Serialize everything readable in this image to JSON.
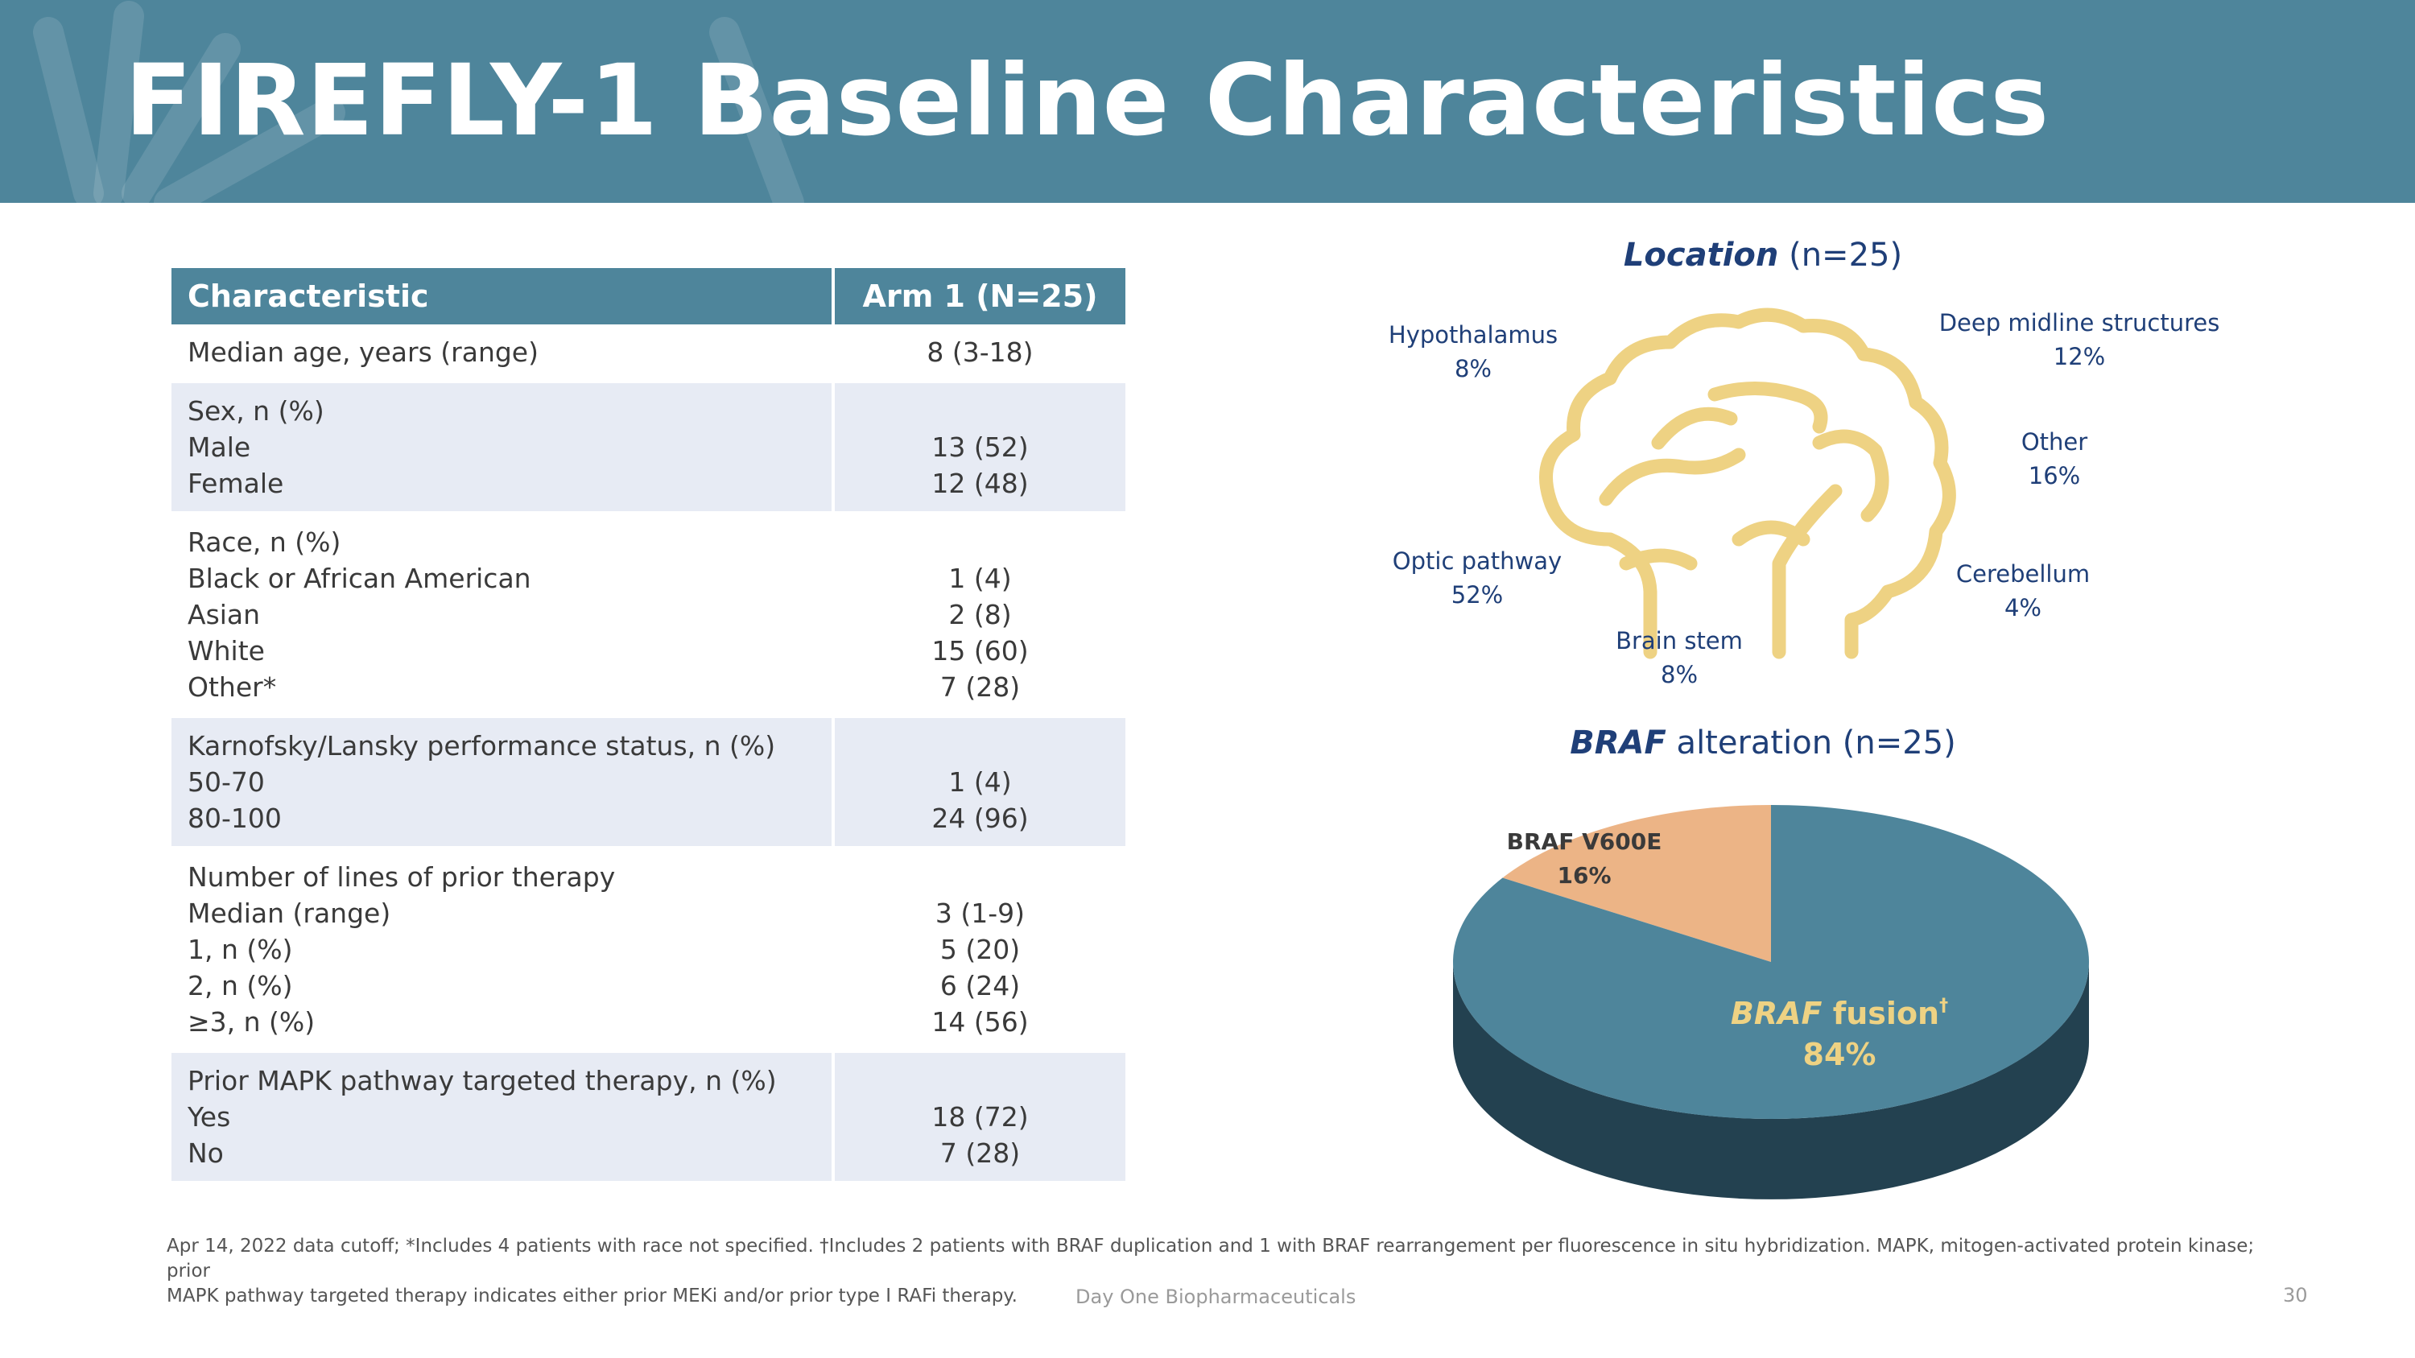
{
  "header": {
    "title": "FIREFLY-1 Baseline Characteristics"
  },
  "table": {
    "col1_header": "Characteristic",
    "col2_header": "Arm 1 (N=25)",
    "rows": [
      {
        "labels": [
          "Median age, years (range)"
        ],
        "values": [
          "8 (3-18)"
        ]
      },
      {
        "labels": [
          "Sex, n (%)",
          "Male",
          "Female"
        ],
        "values": [
          "",
          "13 (52)",
          "12 (48)"
        ]
      },
      {
        "labels": [
          "Race, n (%)",
          "Black or African American",
          "Asian",
          "White",
          "Other*"
        ],
        "values": [
          "",
          "1 (4)",
          "2 (8)",
          "15 (60)",
          "7 (28)"
        ]
      },
      {
        "labels": [
          "Karnofsky/Lansky performance status, n (%)",
          "50-70",
          "80-100"
        ],
        "values": [
          "",
          "1 (4)",
          "24 (96)"
        ]
      },
      {
        "labels": [
          "Number of lines of prior therapy",
          "Median (range)",
          "1, n (%)",
          "2, n (%)",
          "≥3, n (%)"
        ],
        "values": [
          "",
          "3 (1-9)",
          "5 (20)",
          "6 (24)",
          "14 (56)"
        ]
      },
      {
        "labels": [
          "Prior MAPK pathway targeted therapy, n (%)",
          "Yes",
          "No"
        ],
        "values": [
          "",
          "18 (72)",
          "7 (28)"
        ]
      }
    ]
  },
  "location": {
    "title_em": "Location",
    "title_rest": " (n=25)",
    "labels": [
      {
        "name": "Hypothalamus",
        "pct": "8%"
      },
      {
        "name": "Deep midline structures",
        "pct": "12%"
      },
      {
        "name": "Other",
        "pct": "16%"
      },
      {
        "name": "Optic pathway",
        "pct": "52%"
      },
      {
        "name": "Cerebellum",
        "pct": "4%"
      },
      {
        "name": "Brain stem",
        "pct": "8%"
      }
    ]
  },
  "chart_data": {
    "type": "pie",
    "title": "BRAF alteration (n=25)",
    "title_em": "BRAF",
    "title_rest": " alteration (n=25)",
    "slices": [
      {
        "label": "BRAF V600E",
        "value": 16,
        "display": "16%",
        "color": "#ecb486"
      },
      {
        "label_em": "BRAF",
        "label_rest": " fusion",
        "label_sup": "†",
        "label": "BRAF fusion",
        "value": 84,
        "display": "84%",
        "color": "#4e859b"
      }
    ]
  },
  "colors": {
    "header": "#4e859b",
    "brain": "#eed283",
    "text_dark": "#1f3f78",
    "pie_side": "#234150"
  },
  "footnote": {
    "line1": "Apr 14, 2022 data cutoff; *Includes 4 patients with race not specified. †Includes 2 patients with BRAF duplication and 1 with BRAF rearrangement per fluorescence in situ hybridization. MAPK, mitogen-activated protein kinase; prior",
    "line2": "MAPK pathway targeted therapy indicates either prior MEKi and/or prior type I RAFi therapy."
  },
  "footer": {
    "company": "Day One Biopharmaceuticals",
    "page": "30"
  }
}
